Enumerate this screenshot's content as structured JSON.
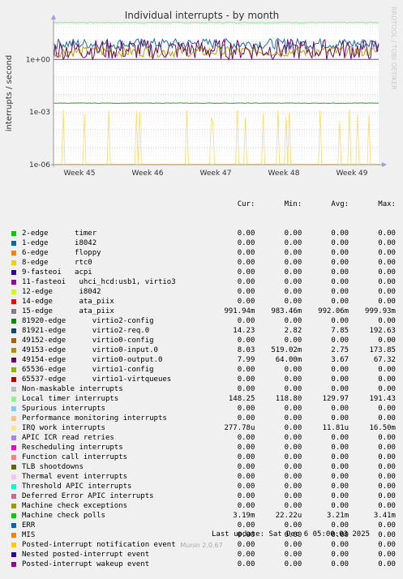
{
  "chart_data": {
    "type": "line",
    "title": "Individual interrupts - by month",
    "ylabel": "interrupts / second",
    "yscale": "log",
    "ylim": [
      1e-06,
      100
    ],
    "y_ticks": [
      {
        "value": 1,
        "label": "1e+00"
      },
      {
        "value": 0.001,
        "label": "1e-03"
      },
      {
        "value": 1e-06,
        "label": "1e-06"
      }
    ],
    "x_ticks": [
      "Week 45",
      "Week 46",
      "Week 47",
      "Week 48",
      "Week 49"
    ],
    "grid": true,
    "series_approx_levels": [
      {
        "name": "Local timer interrupts",
        "color": "#7cfc7c",
        "level": 130
      },
      {
        "name": "81921-edge virtio2-req.0",
        "color": "#1f6fa3",
        "level": 7.85
      },
      {
        "name": "49153-edge virtio0-input.0",
        "color": "#c8a000",
        "level": 2.75
      },
      {
        "name": "49154-edge virtio0-output.0",
        "color": "#6a0d6a",
        "level": 3.67
      },
      {
        "name": "15-edge ata_piix",
        "color": "#7b3fa0",
        "level": 0.992
      },
      {
        "name": "Machine check polls",
        "color": "#22aa22",
        "level": 0.00321
      },
      {
        "name": "IRQ work interrupts",
        "color": "#ffd966",
        "level": 1.18e-05
      }
    ]
  },
  "side_label": "RRDTOOL / TOBI OETIKER",
  "legend": {
    "headers": [
      "Cur:",
      "Min:",
      "Avg:",
      "Max:"
    ],
    "rows": [
      {
        "name": "2-edge      timer",
        "color": "#00cc00",
        "cur": "0.00",
        "min": "0.00",
        "avg": "0.00",
        "max": "0.00"
      },
      {
        "name": "1-edge      i8042",
        "color": "#0066b3",
        "cur": "0.00",
        "min": "0.00",
        "avg": "0.00",
        "max": "0.00"
      },
      {
        "name": "6-edge      floppy",
        "color": "#ff8000",
        "cur": "0.00",
        "min": "0.00",
        "avg": "0.00",
        "max": "0.00"
      },
      {
        "name": "8-edge      rtc0",
        "color": "#ffcc00",
        "cur": "0.00",
        "min": "0.00",
        "avg": "0.00",
        "max": "0.00"
      },
      {
        "name": "9-fasteoi   acpi",
        "color": "#330099",
        "cur": "0.00",
        "min": "0.00",
        "avg": "0.00",
        "max": "0.00"
      },
      {
        "name": "11-fasteoi   uhci_hcd:usb1, virtio3",
        "color": "#990099",
        "cur": "0.00",
        "min": "0.00",
        "avg": "0.00",
        "max": "0.00"
      },
      {
        "name": "12-edge      i8042",
        "color": "#ccff00",
        "cur": "0.00",
        "min": "0.00",
        "avg": "0.00",
        "max": "0.00"
      },
      {
        "name": "14-edge      ata_piix",
        "color": "#ff0000",
        "cur": "0.00",
        "min": "0.00",
        "avg": "0.00",
        "max": "0.00"
      },
      {
        "name": "15-edge      ata_piix",
        "color": "#808080",
        "cur": "991.94m",
        "min": "983.46m",
        "avg": "992.06m",
        "max": "999.93m"
      },
      {
        "name": "81920-edge      virtio2-config",
        "color": "#008f00",
        "cur": "0.00",
        "min": "0.00",
        "avg": "0.00",
        "max": "0.00"
      },
      {
        "name": "81921-edge      virtio2-req.0",
        "color": "#00487d",
        "cur": "14.23",
        "min": "2.82",
        "avg": "7.85",
        "max": "192.63"
      },
      {
        "name": "49152-edge      virtio0-config",
        "color": "#b35a00",
        "cur": "0.00",
        "min": "0.00",
        "avg": "0.00",
        "max": "0.00"
      },
      {
        "name": "49153-edge      virtio0-input.0",
        "color": "#b38f00",
        "cur": "8.03",
        "min": "519.02m",
        "avg": "2.75",
        "max": "173.85"
      },
      {
        "name": "49154-edge      virtio0-output.0",
        "color": "#6b006b",
        "cur": "7.99",
        "min": "64.00m",
        "avg": "3.67",
        "max": "67.32"
      },
      {
        "name": "65536-edge      virtio1-config",
        "color": "#8fb300",
        "cur": "0.00",
        "min": "0.00",
        "avg": "0.00",
        "max": "0.00"
      },
      {
        "name": "65537-edge      virtio1-virtqueues",
        "color": "#b30000",
        "cur": "0.00",
        "min": "0.00",
        "avg": "0.00",
        "max": "0.00"
      },
      {
        "name": "Non-maskable interrupts",
        "color": "#bebebe",
        "cur": "0.00",
        "min": "0.00",
        "avg": "0.00",
        "max": "0.00"
      },
      {
        "name": "Local timer interrupts",
        "color": "#80ff80",
        "cur": "148.25",
        "min": "118.80",
        "avg": "129.97",
        "max": "191.43"
      },
      {
        "name": "Spurious interrupts",
        "color": "#80c9ff",
        "cur": "0.00",
        "min": "0.00",
        "avg": "0.00",
        "max": "0.00"
      },
      {
        "name": "Performance monitoring interrupts",
        "color": "#ffc080",
        "cur": "0.00",
        "min": "0.00",
        "avg": "0.00",
        "max": "0.00"
      },
      {
        "name": "IRQ work interrupts",
        "color": "#ffe680",
        "cur": "277.78u",
        "min": "0.00",
        "avg": "11.81u",
        "max": "16.50m"
      },
      {
        "name": "APIC ICR read retries",
        "color": "#aa80ff",
        "cur": "0.00",
        "min": "0.00",
        "avg": "0.00",
        "max": "0.00"
      },
      {
        "name": "Rescheduling interrupts",
        "color": "#ee00cc",
        "cur": "0.00",
        "min": "0.00",
        "avg": "0.00",
        "max": "0.00"
      },
      {
        "name": "Function call interrupts",
        "color": "#ff8080",
        "cur": "0.00",
        "min": "0.00",
        "avg": "0.00",
        "max": "0.00"
      },
      {
        "name": "TLB shootdowns",
        "color": "#666600",
        "cur": "0.00",
        "min": "0.00",
        "avg": "0.00",
        "max": "0.00"
      },
      {
        "name": "Thermal event interrupts",
        "color": "#ffbfff",
        "cur": "0.00",
        "min": "0.00",
        "avg": "0.00",
        "max": "0.00"
      },
      {
        "name": "Threshold APIC interrupts",
        "color": "#00ffcc",
        "cur": "0.00",
        "min": "0.00",
        "avg": "0.00",
        "max": "0.00"
      },
      {
        "name": "Deferred Error APIC interrupts",
        "color": "#cc6699",
        "cur": "0.00",
        "min": "0.00",
        "avg": "0.00",
        "max": "0.00"
      },
      {
        "name": "Machine check exceptions",
        "color": "#999900",
        "cur": "0.00",
        "min": "0.00",
        "avg": "0.00",
        "max": "0.00"
      },
      {
        "name": "Machine check polls",
        "color": "#00cc00",
        "cur": "3.19m",
        "min": "22.22u",
        "avg": "3.21m",
        "max": "3.41m"
      },
      {
        "name": "ERR",
        "color": "#0066b3",
        "cur": "0.00",
        "min": "0.00",
        "avg": "0.00",
        "max": "0.00"
      },
      {
        "name": "MIS",
        "color": "#ff8000",
        "cur": "0.00",
        "min": "0.00",
        "avg": "0.00",
        "max": "0.00"
      },
      {
        "name": "Posted-interrupt notification event",
        "color": "#ffcc00",
        "cur": "0.00",
        "min": "0.00",
        "avg": "0.00",
        "max": "0.00"
      },
      {
        "name": "Nested posted-interrupt event",
        "color": "#330099",
        "cur": "0.00",
        "min": "0.00",
        "avg": "0.00",
        "max": "0.00"
      },
      {
        "name": "Posted-interrupt wakeup event",
        "color": "#990099",
        "cur": "0.00",
        "min": "0.00",
        "avg": "0.00",
        "max": "0.00"
      }
    ]
  },
  "last_update": "Last update: Sat Dec  6 05:00:03 2025",
  "munin_version": "Munin 2.0.67"
}
